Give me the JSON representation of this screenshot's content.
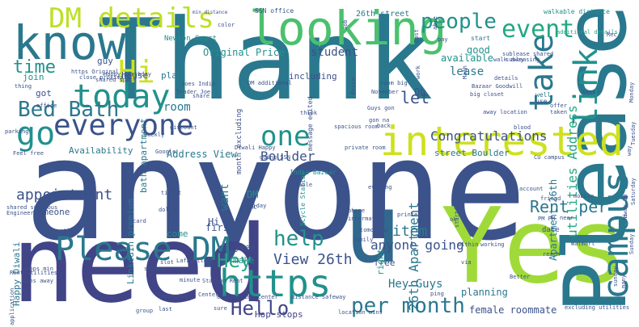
{
  "words": [
    {
      "t": "anyone",
      "c": "#3b528b"
    },
    {
      "t": "Thank",
      "c": "#2a788e"
    },
    {
      "t": "need",
      "c": "#414487"
    },
    {
      "t": "Yes",
      "c": "#a0da39"
    },
    {
      "t": "u",
      "c": "#31688e"
    },
    {
      "t": "know",
      "c": "#2a788e"
    },
    {
      "t": "looking",
      "c": "#4ac16d"
    },
    {
      "t": "Please",
      "c": "#2a788e"
    },
    {
      "t": "interested",
      "c": "#cde11d"
    },
    {
      "t": "Please DM",
      "c": "#2a788e"
    },
    {
      "t": "campus",
      "c": "#2a788e"
    },
    {
      "t": "https",
      "c": "#21918c"
    },
    {
      "t": "everyone",
      "c": "#3b528b"
    },
    {
      "t": "today",
      "c": "#21918c"
    },
    {
      "t": "DM details",
      "c": "#bddf26"
    },
    {
      "t": "link",
      "c": "#21918c"
    },
    {
      "t": "take",
      "c": "#2a788e"
    },
    {
      "t": "Hi",
      "c": "#cde11d"
    },
    {
      "t": "go",
      "c": "#21918c"
    },
    {
      "t": "one",
      "c": "#21918c"
    },
    {
      "t": "Hello",
      "c": "#414487"
    },
    {
      "t": "event",
      "c": "#22a884"
    },
    {
      "t": "people",
      "c": "#21918c"
    },
    {
      "t": "Bed Bath",
      "c": "#2a788e"
    },
    {
      "t": "per month",
      "c": "#2a788e"
    },
    {
      "t": "help",
      "c": "#21918c"
    },
    {
      "t": "time",
      "c": "#21918c"
    },
    {
      "t": "Hey",
      "c": "#22a884"
    },
    {
      "t": "View 26th",
      "c": "#3b528b"
    },
    {
      "t": "anyone going",
      "c": "#3b528b"
    },
    {
      "t": "26th Apartment",
      "c": "#2a788e"
    },
    {
      "t": "Rent per",
      "c": "#2a788e"
    },
    {
      "t": "utilities Address",
      "c": "#22a884"
    },
    {
      "t": "appointment",
      "c": "#3b528b"
    },
    {
      "t": "let",
      "c": "#3b528b"
    },
    {
      "t": "Congratulations",
      "c": "#3b528b"
    },
    {
      "t": "item",
      "c": "#2a788e"
    },
    {
      "t": "Boulder",
      "c": "#3b528b"
    },
    {
      "t": "student",
      "c": "#3b528b"
    },
    {
      "t": "Original Price",
      "c": "#21918c"
    },
    {
      "t": "Apartment 26th",
      "c": "#2a788e"
    },
    {
      "t": "Hey Guys",
      "c": "#2a788e"
    },
    {
      "t": "planning",
      "c": "#2a788e"
    },
    {
      "t": "female roommate",
      "c": "#3b528b"
    },
    {
      "t": "Hop stops",
      "c": "#414487"
    },
    {
      "t": "available",
      "c": "#21918c"
    },
    {
      "t": "good",
      "c": "#21918c"
    },
    {
      "t": "lease",
      "c": "#2a788e"
    },
    {
      "t": "room",
      "c": "#2a788e"
    },
    {
      "t": "Address View",
      "c": "#2a788e"
    },
    {
      "t": "bath apartment",
      "c": "#2a788e"
    },
    {
      "t": "Availability",
      "c": "#2a788e"
    },
    {
      "t": "street Boulder",
      "c": "#2a788e"
    },
    {
      "t": "LinkedIn premium",
      "c": "#2a788e"
    },
    {
      "t": "someone",
      "c": "#3b528b"
    },
    {
      "t": "Happy Diwali",
      "c": "#2a788e"
    },
    {
      "t": "want",
      "c": "#2a788e"
    },
    {
      "t": "DM",
      "c": "#21918c"
    },
    {
      "t": "Hi",
      "c": "#3b528b"
    },
    {
      "t": "first",
      "c": "#3b528b"
    },
    {
      "t": "year",
      "c": "#3b528b"
    },
    {
      "t": "make",
      "c": "#21918c"
    },
    {
      "t": "come",
      "c": "#21918c"
    },
    {
      "t": "free",
      "c": "#3b528b"
    },
    {
      "t": "right",
      "c": "#21918c"
    },
    {
      "t": "Oh",
      "c": "#3b528b"
    },
    {
      "t": "got",
      "c": "#3b528b"
    },
    {
      "t": "join",
      "c": "#21918c"
    },
    {
      "t": "guy",
      "c": "#3b528b"
    },
    {
      "t": "house",
      "c": "#3b528b"
    },
    {
      "t": "plan",
      "c": "#2a788e"
    },
    {
      "t": "including",
      "c": "#3b528b"
    },
    {
      "t": "month excluding",
      "c": "#3b528b"
    },
    {
      "t": "India Bazaar",
      "c": "#21918c"
    },
    {
      "t": "BCycle Station",
      "c": "#21918c"
    },
    {
      "t": "message edited",
      "c": "#3b528b"
    },
    {
      "t": "SSN office",
      "c": "#3b528b"
    },
    {
      "t": "26th street",
      "c": "#2a788e"
    },
    {
      "t": "Newton Court",
      "c": "#21918c"
    },
    {
      "t": "start",
      "c": "#2a788e"
    },
    {
      "t": "well",
      "c": "#2a788e"
    },
    {
      "t": "use",
      "c": "#3b528b"
    },
    {
      "t": "date",
      "c": "#3b528b"
    },
    {
      "t": "min distance",
      "c": "#3b528b"
    },
    {
      "t": "walkable distance",
      "c": "#21918c"
    },
    {
      "t": "additional details",
      "c": "#22a884"
    },
    {
      "t": "subleasing",
      "c": "#3b528b"
    },
    {
      "t": "Walmart",
      "c": "#3b528b"
    },
    {
      "t": "Diwali Happy",
      "c": "#3b528b"
    },
    {
      "t": "shared spacious",
      "c": "#3b528b"
    },
    {
      "t": "Engineering",
      "c": "#3b528b"
    },
    {
      "t": "Table",
      "c": "#3b528b"
    },
    {
      "t": "printer",
      "c": "#3b528b"
    },
    {
      "t": "account",
      "c": "#3b528b"
    },
    {
      "t": "friend",
      "c": "#3b528b"
    },
    {
      "t": "mobile",
      "c": "#3b528b"
    },
    {
      "t": "Rent utilities",
      "c": "#3b528b"
    },
    {
      "t": "Station Rent",
      "c": "#3b528b"
    },
    {
      "t": "engineering center",
      "c": "#3b528b"
    },
    {
      "t": "distance Safeway",
      "c": "#3b528b"
    },
    {
      "t": "location mins",
      "c": "#3b528b"
    },
    {
      "t": "ping",
      "c": "#3b528b"
    },
    {
      "t": "group",
      "c": "#3b528b"
    },
    {
      "t": "last",
      "c": "#3b528b"
    },
    {
      "t": "via",
      "c": "#3b528b"
    },
    {
      "t": "Better",
      "c": "#3b528b"
    },
    {
      "t": "working",
      "c": "#3b528b"
    },
    {
      "t": "evening",
      "c": "#3b528b"
    },
    {
      "t": "information",
      "c": "#3b528b"
    },
    {
      "t": "tomorrow",
      "c": "#3b528b"
    },
    {
      "t": "family",
      "c": "#3b528b"
    },
    {
      "t": "ticket",
      "c": "#3b528b"
    },
    {
      "t": "dollar",
      "c": "#3b528b"
    },
    {
      "t": "Friday",
      "c": "#3b528b"
    },
    {
      "t": "stops min",
      "c": "#3b528b"
    },
    {
      "t": "mins away",
      "c": "#3b528b"
    },
    {
      "t": "still",
      "c": "#3b528b"
    },
    {
      "t": "Lafayette",
      "c": "#3b528b"
    },
    {
      "t": "spring",
      "c": "#3b528b"
    },
    {
      "t": "slot",
      "c": "#3b528b"
    },
    {
      "t": "Google",
      "c": "#3b528b"
    },
    {
      "t": "discount",
      "c": "#3b528b"
    },
    {
      "t": "Feel free",
      "c": "#3b528b"
    },
    {
      "t": "going SSN",
      "c": "#3b528b"
    },
    {
      "t": "private room",
      "c": "#3b528b"
    },
    {
      "t": "spacious room",
      "c": "#3b528b"
    },
    {
      "t": "CU campus",
      "c": "#3b528b"
    },
    {
      "t": "Bazaar Goodwill",
      "c": "#3b528b"
    },
    {
      "t": "big closet",
      "c": "#3b528b"
    },
    {
      "t": "room big",
      "c": "#3b528b"
    },
    {
      "t": "November",
      "c": "#3b528b"
    },
    {
      "t": "Guys gon",
      "c": "#3b528b"
    },
    {
      "t": "gon na",
      "c": "#3b528b"
    },
    {
      "t": "back",
      "c": "#3b528b"
    },
    {
      "t": "think",
      "c": "#3b528b"
    },
    {
      "t": "close proximity",
      "c": "#3b528b"
    },
    {
      "t": "https Original",
      "c": "#3b528b"
    },
    {
      "t": "Happy birthday",
      "c": "#3b528b"
    },
    {
      "t": "shared space",
      "c": "#3b528b"
    },
    {
      "t": "Joes India",
      "c": "#3b528b"
    },
    {
      "t": "share",
      "c": "#3b528b"
    },
    {
      "t": "office",
      "c": "#3b528b"
    },
    {
      "t": "thing",
      "c": "#3b528b"
    },
    {
      "t": "walk away",
      "c": "#3b528b"
    },
    {
      "t": "sublease shared",
      "c": "#3b528b"
    },
    {
      "t": "details",
      "c": "#3b528b"
    },
    {
      "t": "away location",
      "c": "#3b528b"
    },
    {
      "t": "taken",
      "c": "#3b528b"
    },
    {
      "t": "offer",
      "c": "#3b528b"
    },
    {
      "t": "blood",
      "c": "#3b528b"
    },
    {
      "t": "send",
      "c": "#3b528b"
    },
    {
      "t": "color",
      "c": "#3b528b"
    },
    {
      "t": "pay",
      "c": "#3b528b"
    },
    {
      "t": "Rec",
      "c": "#3b528b"
    },
    {
      "t": "within",
      "c": "#3b528b"
    },
    {
      "t": "near",
      "c": "#3b528b"
    },
    {
      "t": "reach",
      "c": "#3b528b"
    },
    {
      "t": "happening",
      "c": "#3b528b"
    },
    {
      "t": "DM additional",
      "c": "#3b528b"
    },
    {
      "t": "excluding utilities",
      "c": "#3b528b"
    },
    {
      "t": "away Up",
      "c": "#3b528b"
    },
    {
      "t": "PM PM",
      "c": "#3b528b"
    },
    {
      "t": "minute",
      "c": "#3b528b"
    },
    {
      "t": "UMC",
      "c": "#3b528b"
    },
    {
      "t": "Center",
      "c": "#3b528b"
    },
    {
      "t": "work",
      "c": "#3b528b"
    },
    {
      "t": "Math",
      "c": "#3b528b"
    },
    {
      "t": "sure",
      "c": "#3b528b"
    },
    {
      "t": "starting",
      "c": "#3b528b"
    },
    {
      "t": "phone",
      "c": "#3b528b"
    },
    {
      "t": "Job",
      "c": "#3b528b"
    },
    {
      "t": "Cost",
      "c": "#3b528b"
    },
    {
      "t": "able",
      "c": "#3b528b"
    },
    {
      "t": "many",
      "c": "#3b528b"
    },
    {
      "t": "application",
      "c": "#3b528b"
    },
    {
      "t": "Price",
      "c": "#3b528b"
    },
    {
      "t": "Trader Joe",
      "c": "#3b528b"
    },
    {
      "t": "parking",
      "c": "#3b528b"
    },
    {
      "t": "lol",
      "c": "#3b528b"
    },
    {
      "t": "Aspen",
      "c": "#3b528b"
    },
    {
      "t": "Weekly",
      "c": "#3b528b"
    },
    {
      "t": "card",
      "c": "#3b528b"
    },
    {
      "t": "ok",
      "c": "#3b528b"
    },
    {
      "t": "hi",
      "c": "#3b528b"
    },
    {
      "t": "way",
      "c": "#3b528b"
    },
    {
      "t": "Monday",
      "c": "#3b528b"
    },
    {
      "t": "Tuesday",
      "c": "#3b528b"
    },
    {
      "t": "Saturday",
      "c": "#3b528b"
    },
    {
      "t": "Sunday",
      "c": "#3b528b"
    },
    {
      "t": "sunday",
      "c": "#3b528b"
    }
  ]
}
